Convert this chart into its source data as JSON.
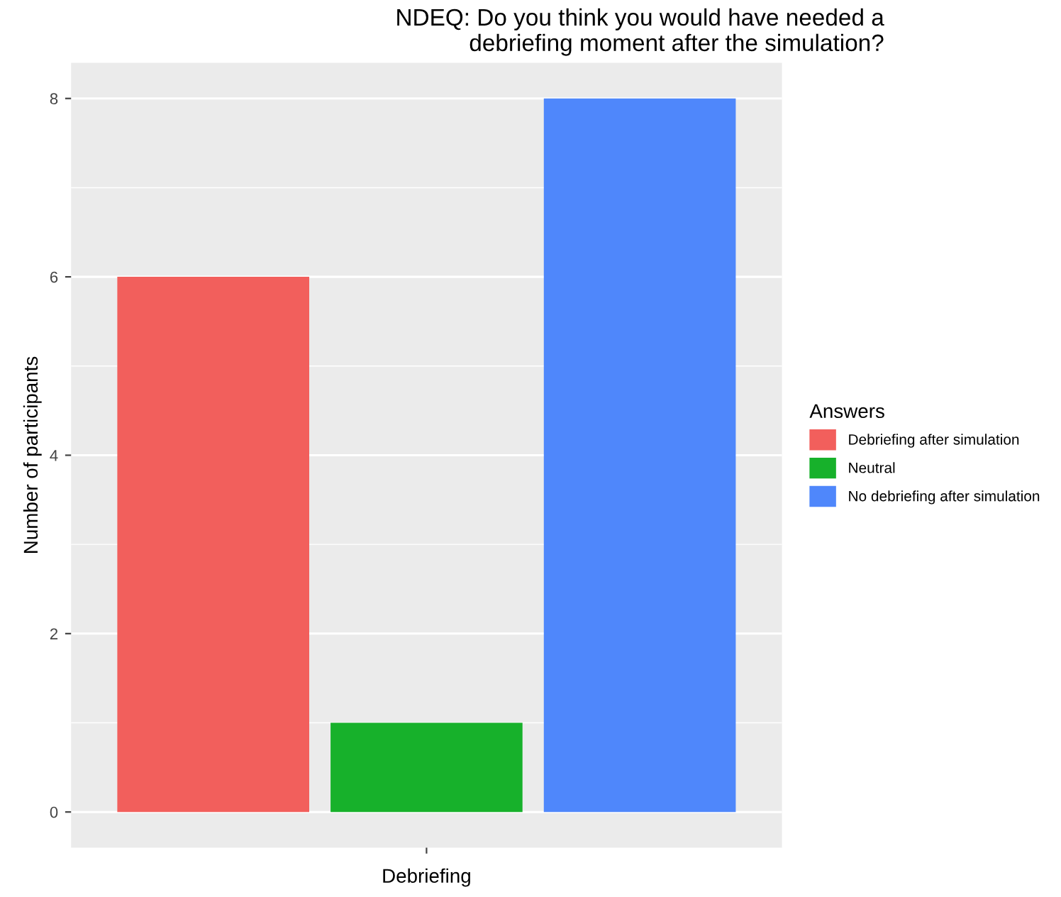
{
  "chart_data": {
    "type": "bar",
    "title": "NDEQ: Do you think you would have needed a\ndebriefing moment after the simulation?",
    "xlabel": "Debriefing",
    "ylabel": "Number of participants",
    "legend_title": "Answers",
    "categories": [
      null
    ],
    "series": [
      {
        "name": "Debriefing after simulation",
        "color": "#f25f5c",
        "values": [
          6
        ]
      },
      {
        "name": "Neutral",
        "color": "#17b12b",
        "values": [
          1
        ]
      },
      {
        "name": "No debriefing after simulation",
        "color": "#4f87fb",
        "values": [
          8
        ]
      }
    ],
    "ylim": [
      -0.4,
      8.4
    ],
    "yticks": [
      0,
      2,
      4,
      6,
      8
    ],
    "grid": "y",
    "legend": "right"
  }
}
